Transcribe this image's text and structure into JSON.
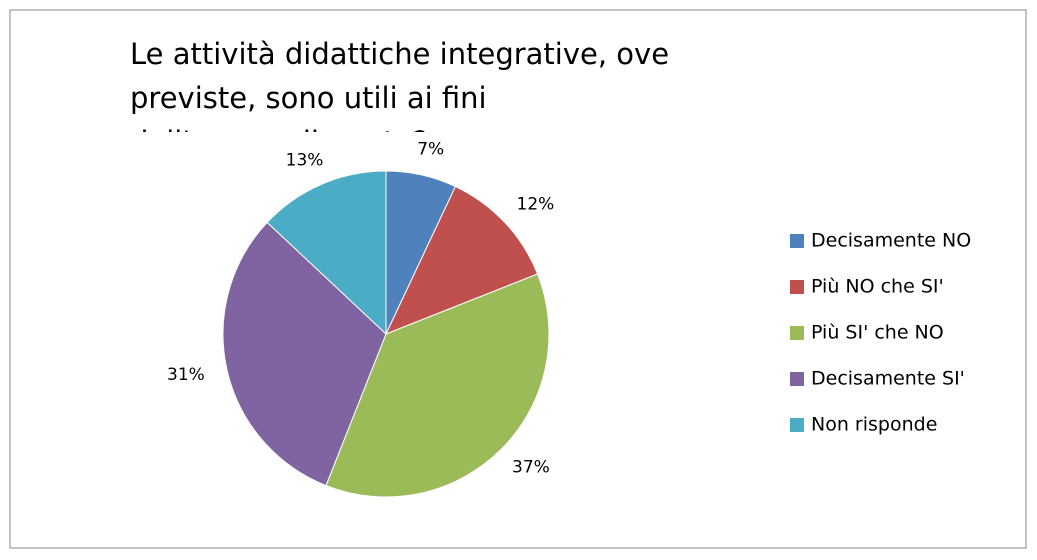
{
  "chart_data": {
    "type": "pie",
    "title": "Le attività didattiche integrative, ove previste, sono utili ai fini dell'apprendimento?",
    "categories": [
      "Decisamente NO",
      "Più NO che SI'",
      "Più SI' che NO",
      "Decisamente SI'",
      "Non risponde"
    ],
    "values": [
      7,
      12,
      37,
      31,
      13
    ],
    "value_labels": [
      "7%",
      "12%",
      "37%",
      "31%",
      "13%"
    ],
    "colors": [
      "#4f81bd",
      "#c0504d",
      "#9bbb59",
      "#8064a2",
      "#4bacc6"
    ],
    "legend": "right"
  }
}
